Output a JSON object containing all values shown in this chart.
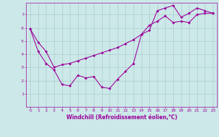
{
  "line1_x": [
    0,
    1,
    2,
    3,
    4,
    5,
    6,
    7,
    8,
    9,
    10,
    11,
    12,
    13,
    14,
    15,
    16,
    17,
    18,
    19,
    20,
    21,
    22,
    23
  ],
  "line1_y": [
    5.9,
    4.2,
    3.3,
    2.8,
    1.7,
    1.6,
    2.4,
    2.2,
    2.3,
    1.5,
    1.4,
    2.1,
    2.7,
    3.3,
    5.5,
    5.8,
    7.3,
    7.5,
    7.7,
    6.8,
    7.1,
    7.5,
    7.3,
    7.1
  ],
  "line2_x": [
    0,
    1,
    2,
    3,
    4,
    5,
    6,
    7,
    8,
    9,
    10,
    11,
    12,
    13,
    14,
    15,
    16,
    17,
    18,
    19,
    20,
    21,
    22,
    23
  ],
  "line2_y": [
    5.9,
    4.9,
    4.2,
    3.0,
    3.2,
    3.3,
    3.5,
    3.7,
    3.9,
    4.1,
    4.3,
    4.5,
    4.8,
    5.1,
    5.5,
    6.2,
    6.5,
    6.9,
    6.4,
    6.5,
    6.4,
    7.0,
    7.1,
    7.1
  ],
  "line_color": "#9b009b",
  "bg_color": "#cce8e8",
  "grid_color": "#aacccc",
  "axis_color": "#9b009b",
  "xlabel": "Windchill (Refroidissement éolien,°C)",
  "xlim": [
    -0.5,
    23.5
  ],
  "ylim": [
    0,
    7.9
  ],
  "xticks": [
    0,
    1,
    2,
    3,
    4,
    5,
    6,
    7,
    8,
    9,
    10,
    11,
    12,
    13,
    14,
    15,
    16,
    17,
    18,
    19,
    20,
    21,
    22,
    23
  ],
  "yticks": [
    1,
    2,
    3,
    4,
    5,
    6,
    7
  ],
  "tick_fontsize": 4.5,
  "xlabel_fontsize": 5.5,
  "marker": "D",
  "markersize": 1.8,
  "linewidth": 0.8
}
